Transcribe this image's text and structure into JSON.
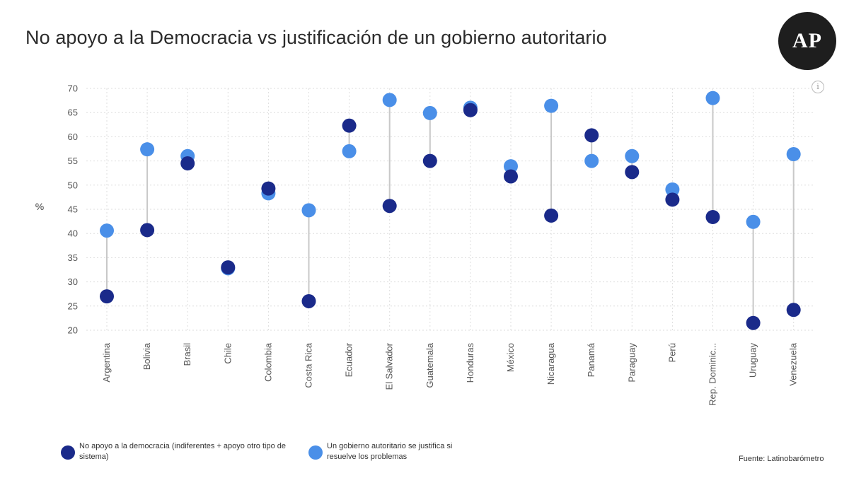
{
  "title": "No apoyo a la Democracia vs justificación de un gobierno autoritario",
  "logo_text": "AP",
  "info_icon": "i",
  "source": "Fuente: Latinobarómetro",
  "colors": {
    "series1": "#1a2a8a",
    "series2": "#4a8fe8",
    "connector": "#c8c8c8",
    "grid": "#dedede",
    "text": "#555555"
  },
  "legend": [
    {
      "label": "No apoyo a la democracia (indiferentes + apoyo otro tipo de sistema)"
    },
    {
      "label": "Un gobierno autoritario se justifica si resuelve los problemas"
    }
  ],
  "chart_data": {
    "type": "scatter",
    "title": "No apoyo a la Democracia vs justificación de un gobierno autoritario",
    "ylabel": "%",
    "xlabel": "",
    "ylim": [
      20,
      70
    ],
    "yticks": [
      20,
      25,
      30,
      35,
      40,
      45,
      50,
      55,
      60,
      65,
      70
    ],
    "grid": true,
    "legend_position": "bottom",
    "categories": [
      "Argentina",
      "Bolivia",
      "Brasil",
      "Chile",
      "Colombia",
      "Costa Rica",
      "Ecuador",
      "El Salvador",
      "Guatemala",
      "Honduras",
      "México",
      "Nicaragua",
      "Panamá",
      "Paraguay",
      "Perú",
      "Rep. Dominic...",
      "Uruguay",
      "Venezuela"
    ],
    "series": [
      {
        "name": "No apoyo a la democracia (indiferentes + apoyo otro tipo de sistema)",
        "values": [
          27,
          40.7,
          54.5,
          33,
          49.3,
          26,
          62.3,
          45.7,
          55,
          65.5,
          51.8,
          43.7,
          60.3,
          52.7,
          47,
          43.4,
          21.5,
          24.2
        ]
      },
      {
        "name": "Un gobierno autoritario se justifica si resuelve los problemas",
        "values": [
          40.6,
          57.4,
          56,
          32.8,
          48.3,
          44.8,
          57,
          67.6,
          64.9,
          66,
          53.9,
          66.4,
          55,
          56,
          49.1,
          68,
          42.4,
          56.4
        ]
      }
    ]
  }
}
